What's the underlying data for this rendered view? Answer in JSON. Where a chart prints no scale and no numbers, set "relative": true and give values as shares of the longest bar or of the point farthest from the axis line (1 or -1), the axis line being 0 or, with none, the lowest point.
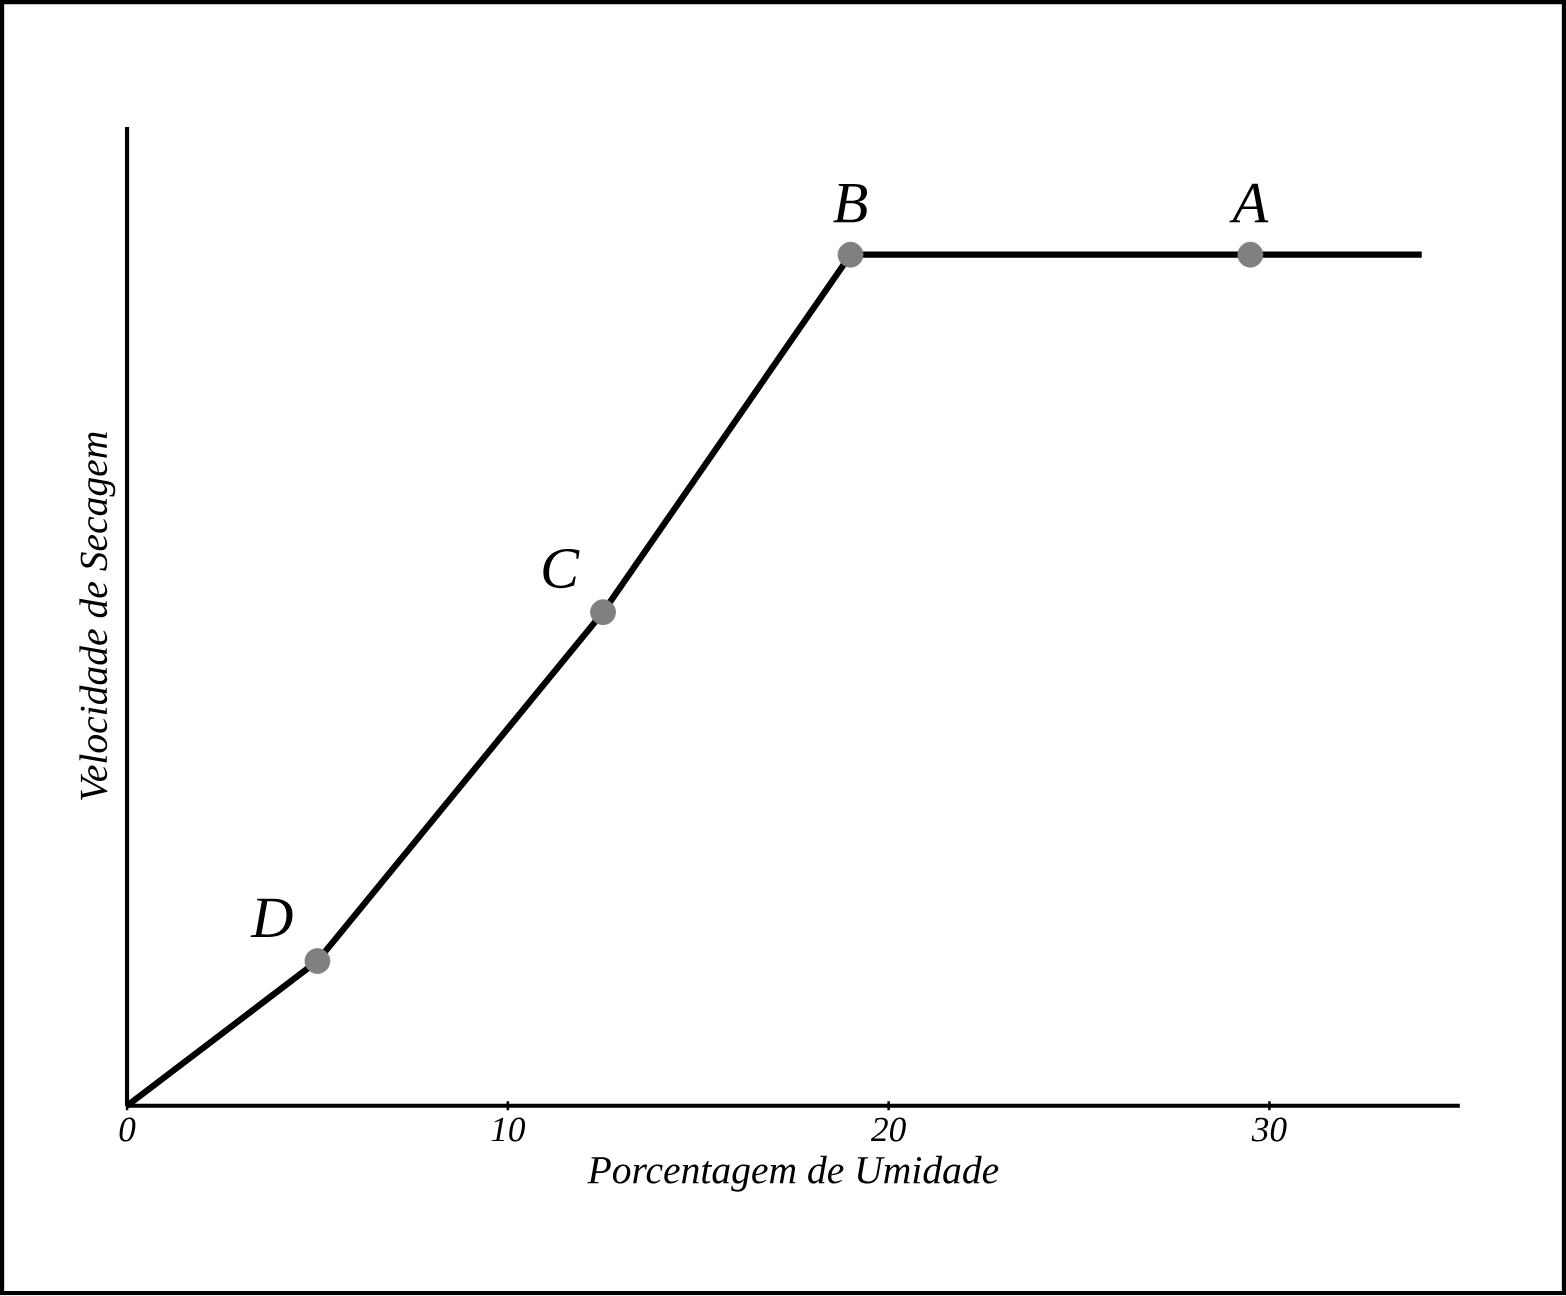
{
  "chart_data": {
    "type": "line",
    "xlabel": "Porcentagem de Umidade",
    "ylabel": "Velocidade de Secagem",
    "relative": true,
    "tick_labels": "x",
    "xlim": [
      0,
      35
    ],
    "xticks": [
      0,
      10,
      20,
      30
    ],
    "series": [
      {
        "color": "#000000",
        "marker": "none",
        "x": [
          0,
          5,
          12.5,
          19,
          34
        ],
        "values": [
          0,
          0.17,
          0.58,
          1,
          1
        ]
      },
      {
        "type": "scatter",
        "color": "#808080",
        "marker": "circle",
        "x": [
          5,
          12.5,
          19,
          29.5
        ],
        "values": [
          0.17,
          0.58,
          1,
          1
        ]
      }
    ],
    "annotations": [
      {
        "text": "D",
        "x": 5,
        "y": 0.17
      },
      {
        "text": "C",
        "x": 12.5,
        "y": 0.58
      },
      {
        "text": "B",
        "x": 19,
        "y": 1
      },
      {
        "text": "A",
        "x": 29.5,
        "y": 1
      }
    ]
  }
}
